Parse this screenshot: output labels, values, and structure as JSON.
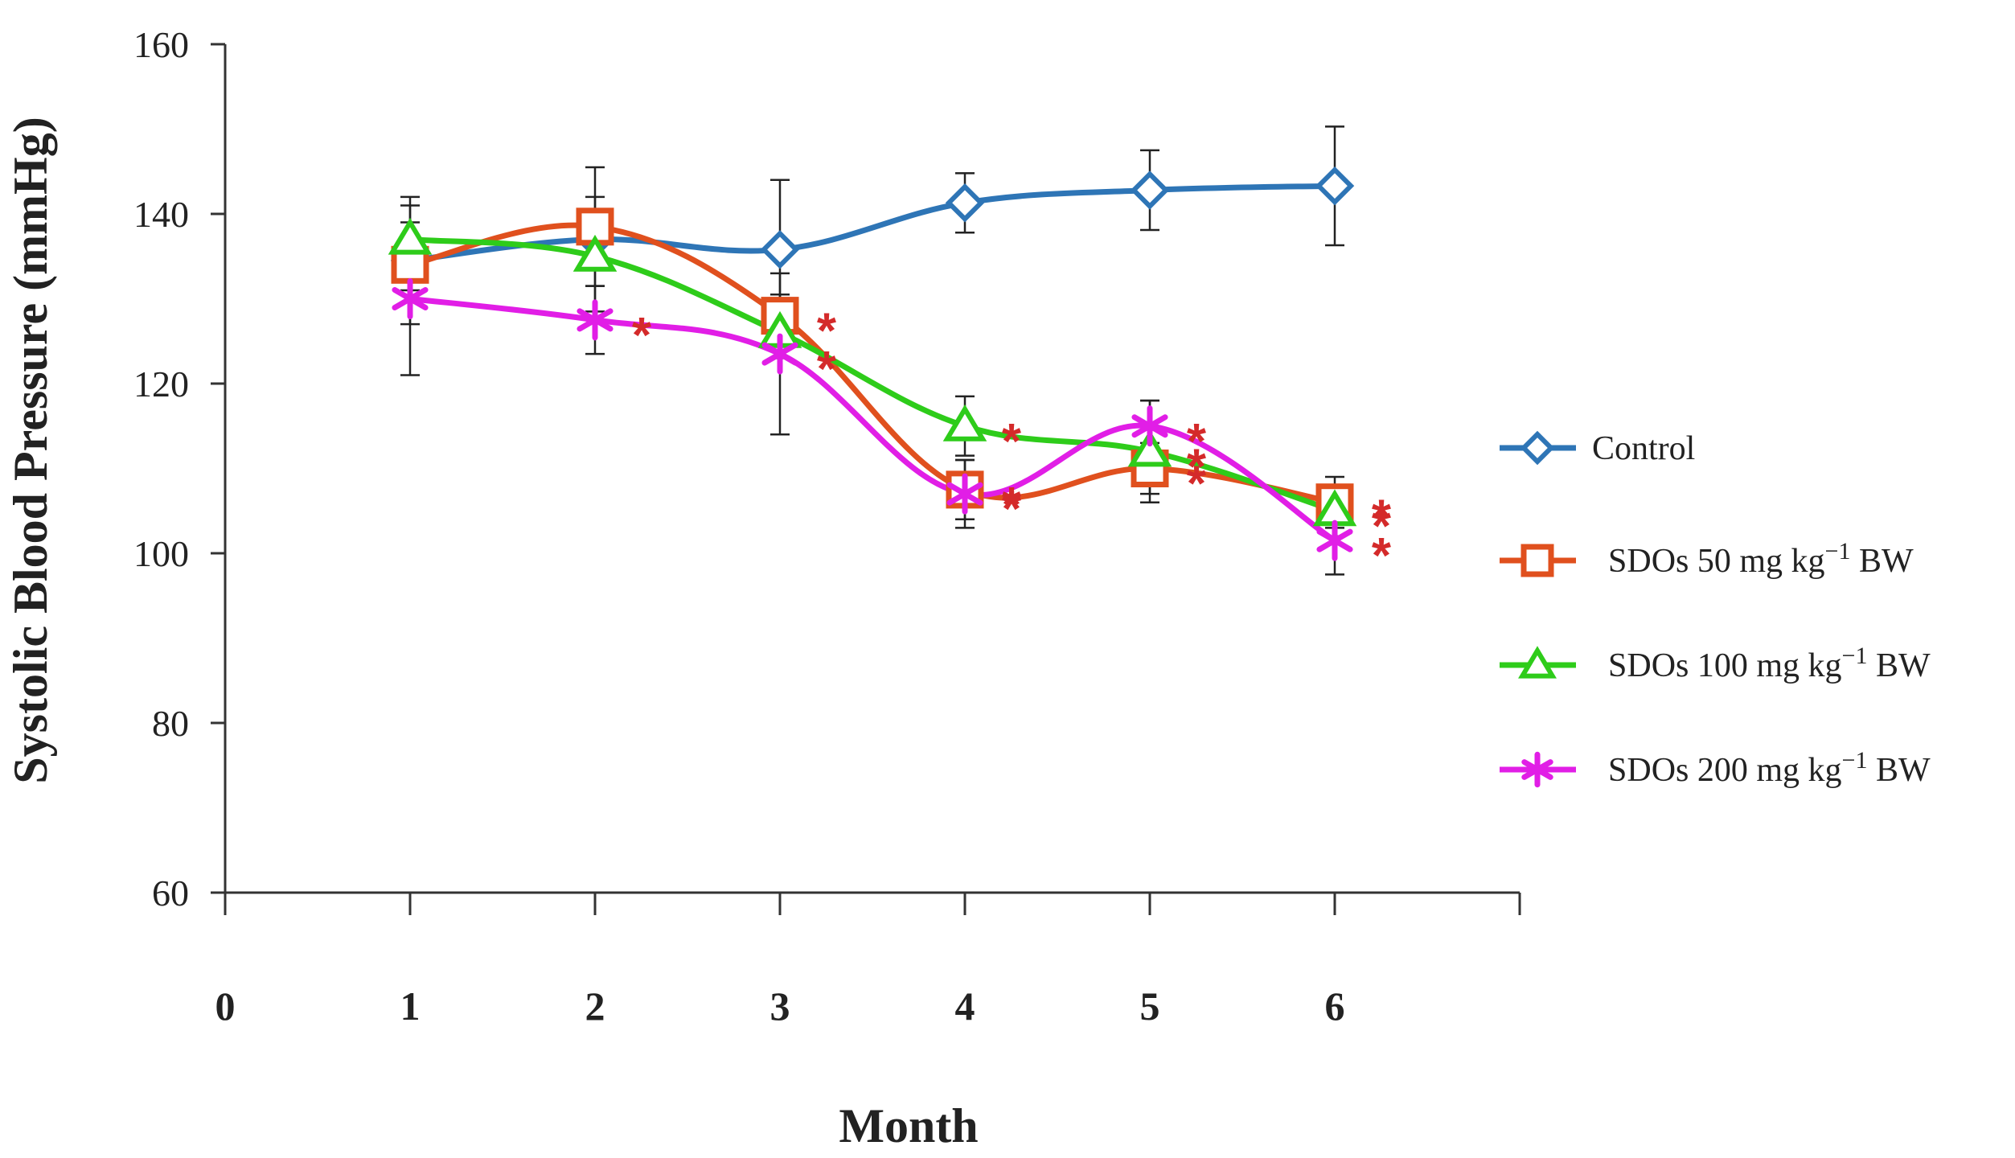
{
  "chart_data": {
    "type": "line",
    "title": "",
    "xlabel": "Month",
    "ylabel": "Systolic Blood Pressure (mmHg)",
    "xlim": [
      0,
      7
    ],
    "ylim": [
      60,
      160
    ],
    "x_ticks": [
      "0",
      "1",
      "2",
      "3",
      "4",
      "5",
      "6"
    ],
    "y_ticks": [
      "60",
      "80",
      "100",
      "120",
      "140",
      "160"
    ],
    "x": [
      1,
      2,
      3,
      4,
      5,
      6
    ],
    "legend_position": "right",
    "significance_marker": "*",
    "series": [
      {
        "name": "Control",
        "legend": {
          "pre": "Control",
          "sup": "",
          "post": ""
        },
        "color": "#2e75b6",
        "marker": "diamond",
        "values": [
          134.5,
          137,
          135.8,
          141.3,
          142.8,
          143.3
        ],
        "errors": [
          7.5,
          8.5,
          8.2,
          3.5,
          4.7,
          7.0
        ],
        "stars": [
          false,
          false,
          false,
          false,
          false,
          false
        ]
      },
      {
        "name": "SDOs 50 mg kg−1 BW",
        "legend": {
          "pre": "SDOs 50 mg kg",
          "sup": "−1",
          "post": " BW"
        },
        "color": "#e0501e",
        "marker": "square",
        "values": [
          134,
          138.5,
          128,
          107.5,
          110,
          106
        ],
        "errors": [
          3,
          3.5,
          2.5,
          3.5,
          3,
          3
        ],
        "stars": [
          false,
          false,
          true,
          true,
          true,
          true
        ]
      },
      {
        "name": "SDOs 100 mg kg−1 BW",
        "legend": {
          "pre": "SDOs 100 mg kg",
          "sup": "−1",
          "post": " BW"
        },
        "color": "#2ecc1a",
        "marker": "triangle",
        "values": [
          137,
          135,
          126,
          115,
          112,
          105
        ],
        "errors": [
          4,
          3.5,
          3,
          3.5,
          6,
          3
        ],
        "stars": [
          false,
          false,
          false,
          true,
          true,
          true
        ]
      },
      {
        "name": "SDOs 200 mg kg−1 BW",
        "legend": {
          "pre": "SDOs 200 mg kg",
          "sup": "−1",
          "post": " BW"
        },
        "color": "#e11ee6",
        "marker": "asterisk",
        "values": [
          130,
          127.5,
          123.5,
          107,
          115,
          101.5
        ],
        "errors": [
          9,
          4,
          9.5,
          4,
          3,
          4
        ],
        "stars": [
          false,
          true,
          true,
          true,
          true,
          true
        ]
      }
    ]
  }
}
